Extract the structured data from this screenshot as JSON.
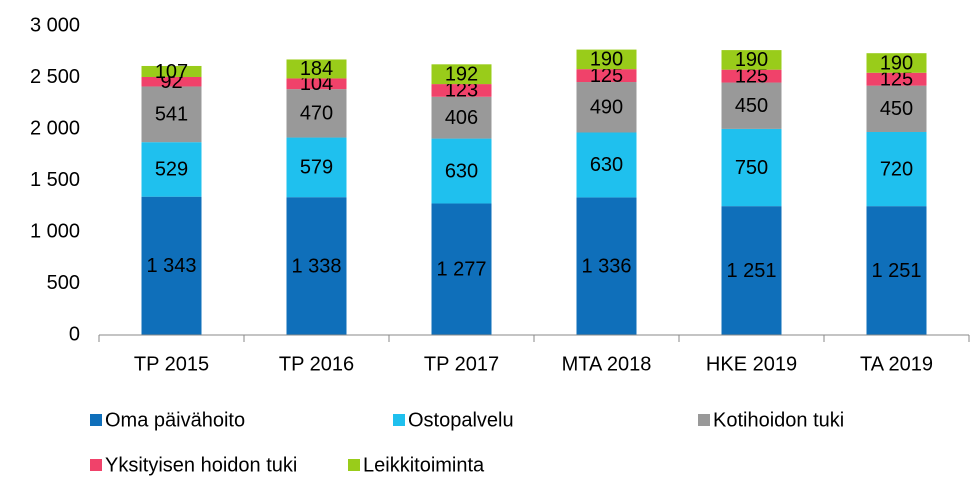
{
  "chart_data": {
    "type": "stacked_bar",
    "categories": [
      "TP 2015",
      "TP 2016",
      "TP 2017",
      "MTA 2018",
      "HKE 2019",
      "TA 2019"
    ],
    "series": [
      {
        "name": "Oma päivähoito",
        "color": "#0f6fba",
        "values": [
          1343,
          1338,
          1277,
          1336,
          1251,
          1251
        ],
        "value_labels": [
          "1 343",
          "1 338",
          "1 277",
          "1 336",
          "1 251",
          "1 251"
        ]
      },
      {
        "name": "Ostopalvelu",
        "color": "#1fc0ee",
        "values": [
          529,
          579,
          630,
          630,
          750,
          720
        ]
      },
      {
        "name": "Kotihoidon tuki",
        "color": "#999999",
        "values": [
          541,
          470,
          406,
          490,
          450,
          450
        ]
      },
      {
        "name": "Yksityisen hoidon tuki",
        "color": "#f0426a",
        "values": [
          92,
          104,
          123,
          125,
          125,
          125
        ]
      },
      {
        "name": "Leikkitoiminta",
        "color": "#99cc1a",
        "values": [
          107,
          184,
          192,
          190,
          190,
          190
        ]
      }
    ],
    "ylim": [
      0,
      3000
    ],
    "yticks": [
      0,
      500,
      {
        "value": 1000,
        "label": "1 000"
      },
      {
        "value": 1500,
        "label": "1 500"
      },
      {
        "value": 2000,
        "label": "2 000"
      },
      {
        "value": 2500,
        "label": "2 500"
      },
      {
        "value": 3000,
        "label": "3 000"
      }
    ],
    "grid": false
  }
}
